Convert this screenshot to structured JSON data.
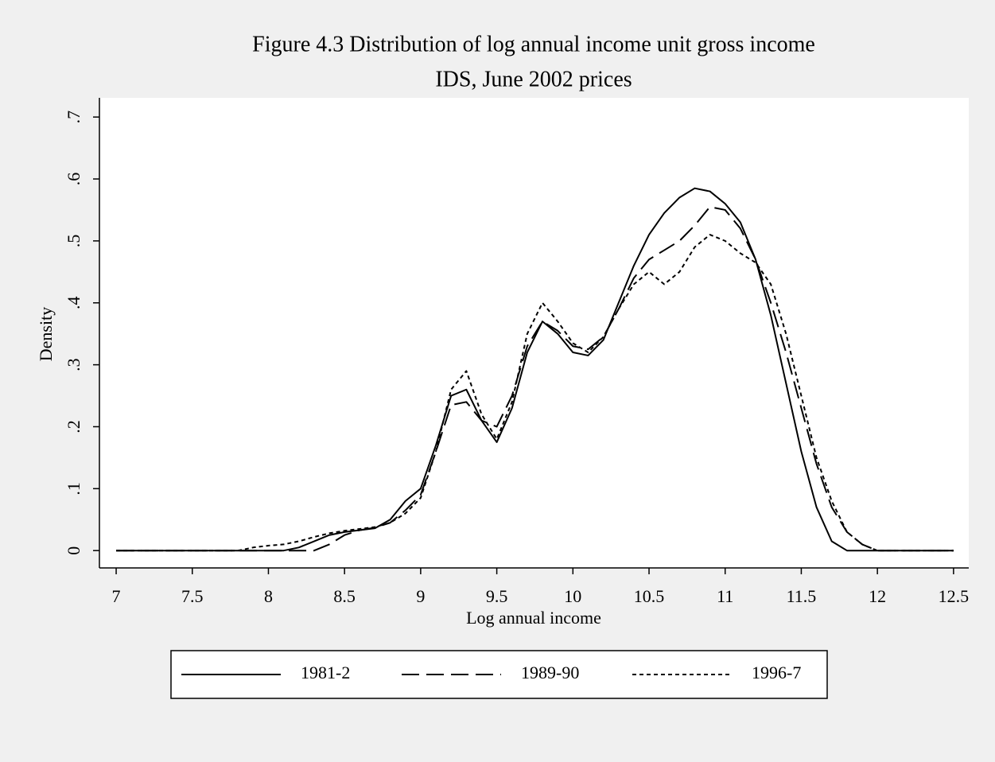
{
  "chart_data": {
    "type": "line",
    "title": "Figure 4.3 Distribution of log annual income unit gross income",
    "subtitle": "IDS, June 2002 prices",
    "x_label": "Log annual income",
    "y_label": "Density",
    "x": [
      7.0,
      7.1,
      7.2,
      7.3,
      7.4,
      7.5,
      7.6,
      7.7,
      7.8,
      7.9,
      8.0,
      8.1,
      8.2,
      8.3,
      8.4,
      8.5,
      8.6,
      8.7,
      8.8,
      8.9,
      9.0,
      9.1,
      9.2,
      9.3,
      9.4,
      9.5,
      9.6,
      9.7,
      9.8,
      9.9,
      10.0,
      10.1,
      10.2,
      10.3,
      10.4,
      10.5,
      10.6,
      10.7,
      10.8,
      10.9,
      11.0,
      11.1,
      11.2,
      11.3,
      11.4,
      11.5,
      11.6,
      11.7,
      11.8,
      11.9,
      12.0,
      12.1,
      12.2,
      12.3,
      12.4,
      12.5
    ],
    "series": [
      {
        "name": "1981-2",
        "color": "#000000",
        "line_style": "solid",
        "values": [
          0,
          0,
          0,
          0,
          0,
          0,
          0,
          0,
          0,
          0,
          0,
          0,
          0.005,
          0.015,
          0.025,
          0.03,
          0.033,
          0.036,
          0.05,
          0.08,
          0.1,
          0.17,
          0.25,
          0.26,
          0.21,
          0.175,
          0.23,
          0.32,
          0.37,
          0.35,
          0.32,
          0.315,
          0.34,
          0.4,
          0.46,
          0.51,
          0.545,
          0.57,
          0.585,
          0.58,
          0.56,
          0.53,
          0.47,
          0.38,
          0.27,
          0.16,
          0.07,
          0.015,
          0,
          0,
          0,
          0,
          0,
          0,
          0,
          0
        ]
      },
      {
        "name": "1989-90",
        "color": "#000000",
        "line_style": "dashed",
        "values": [
          0,
          0,
          0,
          0,
          0,
          0,
          0,
          0,
          0,
          0,
          0,
          0,
          0,
          0,
          0.01,
          0.025,
          0.033,
          0.037,
          0.045,
          0.065,
          0.09,
          0.16,
          0.235,
          0.24,
          0.21,
          0.2,
          0.25,
          0.33,
          0.37,
          0.355,
          0.33,
          0.325,
          0.345,
          0.39,
          0.44,
          0.47,
          0.485,
          0.5,
          0.525,
          0.555,
          0.55,
          0.52,
          0.47,
          0.4,
          0.32,
          0.23,
          0.14,
          0.07,
          0.03,
          0.01,
          0,
          0,
          0,
          0,
          0,
          0
        ]
      },
      {
        "name": "1996-7",
        "color": "#000000",
        "line_style": "dotted",
        "values": [
          0,
          0,
          0,
          0,
          0,
          0,
          0,
          0,
          0,
          0.005,
          0.008,
          0.01,
          0.015,
          0.022,
          0.028,
          0.032,
          0.035,
          0.038,
          0.045,
          0.06,
          0.085,
          0.16,
          0.26,
          0.29,
          0.22,
          0.18,
          0.24,
          0.35,
          0.4,
          0.37,
          0.335,
          0.32,
          0.345,
          0.39,
          0.43,
          0.45,
          0.43,
          0.45,
          0.49,
          0.51,
          0.5,
          0.48,
          0.465,
          0.43,
          0.35,
          0.25,
          0.15,
          0.08,
          0.03,
          0.01,
          0,
          0,
          0,
          0,
          0,
          0
        ]
      }
    ],
    "xlim": [
      6.89,
      12.6
    ],
    "ylim": [
      -0.028,
      0.731
    ],
    "xticks": [
      7,
      7.5,
      8,
      8.5,
      9,
      9.5,
      10,
      10.5,
      11,
      11.5,
      12,
      12.5
    ],
    "yticks": [
      0,
      {
        "value": 0.1,
        "label": ".1"
      },
      {
        "value": 0.2,
        "label": ".2"
      },
      {
        "value": 0.3,
        "label": ".3"
      },
      {
        "value": 0.4,
        "label": ".4"
      },
      {
        "value": 0.5,
        "label": ".5"
      },
      {
        "value": 0.6,
        "label": ".6"
      },
      {
        "value": 0.7,
        "label": ".7"
      }
    ],
    "grid": false,
    "legend": "bottom"
  }
}
